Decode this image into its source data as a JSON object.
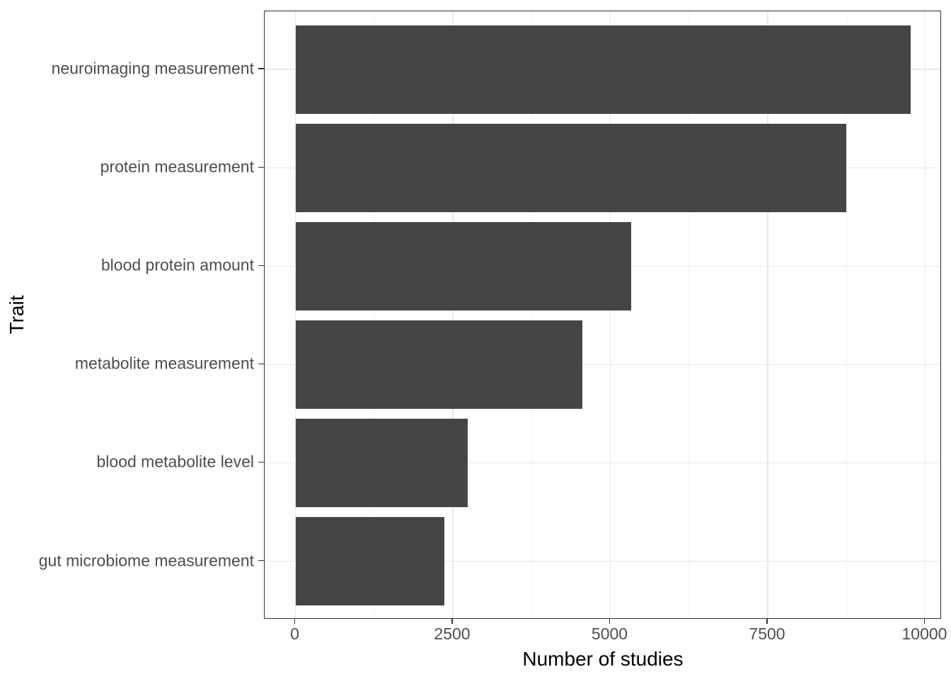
{
  "chart_data": {
    "type": "bar",
    "orientation": "horizontal",
    "title": "",
    "xlabel": "Number of studies",
    "ylabel": "Trait",
    "categories": [
      "neuroimaging measurement",
      "protein measurement",
      "blood protein amount",
      "metabolite measurement",
      "blood metabolite level",
      "gut microbiome measurement"
    ],
    "values": [
      9770,
      8750,
      5330,
      4560,
      2740,
      2360
    ],
    "x_ticks": [
      0,
      2500,
      5000,
      7500,
      10000
    ],
    "x_tick_labels": [
      "0",
      "2500",
      "5000",
      "7500",
      "10000"
    ],
    "x_minor_ticks": [
      1250,
      3750,
      6250,
      8750
    ],
    "xlim": [
      -490,
      10260
    ],
    "grid": true,
    "legend": "none",
    "colors": {
      "bar_fill": "#454545",
      "panel_border": "#2e2e2e",
      "grid_major": "#e8e8e8",
      "grid_minor": "#f3f3f3",
      "tick_mark": "#333333",
      "tick_label": "#4d4d4d",
      "axis_title": "#000000",
      "background": "#ffffff"
    }
  }
}
